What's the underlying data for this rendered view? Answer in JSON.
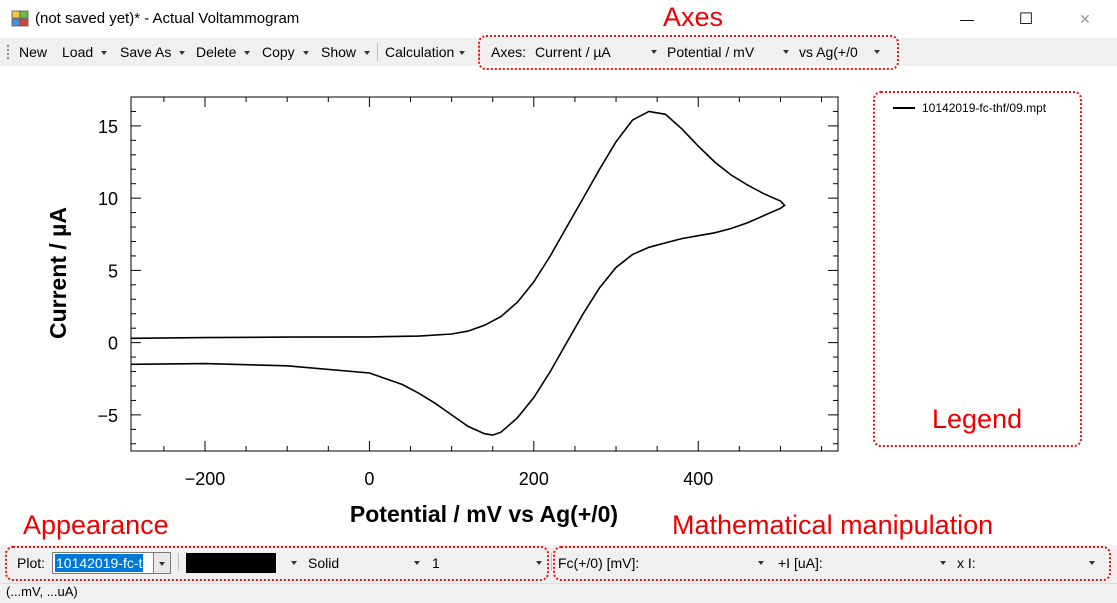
{
  "window": {
    "title": "(not saved yet)* - Actual Voltammogram",
    "icon": "app-icon",
    "controls": {
      "minimize": "—",
      "maximize": "☐",
      "close": "✕"
    }
  },
  "toolbar": {
    "items": [
      {
        "label": "New",
        "dropdown": false
      },
      {
        "label": "Load",
        "dropdown": true
      },
      {
        "label": "Save As",
        "dropdown": true
      },
      {
        "label": "Delete",
        "dropdown": true
      },
      {
        "label": "Copy",
        "dropdown": true
      },
      {
        "label": "Show",
        "dropdown": true
      },
      {
        "label": "Calculation",
        "dropdown": true
      }
    ],
    "axes_label": "Axes:",
    "y_axis_value": "Current / µA",
    "x_axis_value": "Potential / mV",
    "reference_value": "vs Ag(+/0"
  },
  "annotations": {
    "axes": "Axes",
    "legend": "Legend",
    "appearance": "Appearance",
    "math": "Mathematical manipulation"
  },
  "chart_data": {
    "type": "line",
    "xlabel": "Potential / mV vs Ag(+/0)",
    "ylabel": "Current / µA",
    "xlim": [
      -290,
      570
    ],
    "ylim": [
      -7.5,
      17
    ],
    "xticks": [
      -200,
      0,
      200,
      400
    ],
    "yticks": [
      -5,
      0,
      5,
      10,
      15
    ],
    "grid": false,
    "legend_placement": "right",
    "series": [
      {
        "name": "10142019-fc-thf/09.mpt",
        "color": "#000000",
        "x": [
          -290,
          -200,
          -100,
          0,
          60,
          100,
          120,
          140,
          160,
          180,
          200,
          220,
          240,
          260,
          280,
          300,
          320,
          340,
          360,
          380,
          400,
          420,
          440,
          460,
          480,
          500,
          505,
          500,
          480,
          460,
          440,
          420,
          400,
          380,
          360,
          340,
          320,
          300,
          280,
          260,
          240,
          220,
          200,
          180,
          160,
          150,
          140,
          120,
          100,
          80,
          60,
          40,
          0,
          -100,
          -200,
          -290
        ],
        "y": [
          0.3,
          0.35,
          0.38,
          0.4,
          0.45,
          0.6,
          0.8,
          1.2,
          1.8,
          2.8,
          4.2,
          6.0,
          8.0,
          10.0,
          12.0,
          13.9,
          15.4,
          16.0,
          15.8,
          14.8,
          13.6,
          12.5,
          11.6,
          10.9,
          10.3,
          9.8,
          9.5,
          9.3,
          8.8,
          8.3,
          7.9,
          7.6,
          7.4,
          7.2,
          6.9,
          6.6,
          6.1,
          5.2,
          3.8,
          2.0,
          0.0,
          -2.0,
          -3.8,
          -5.2,
          -6.2,
          -6.4,
          -6.3,
          -5.8,
          -5.0,
          -4.2,
          -3.5,
          -2.9,
          -2.1,
          -1.6,
          -1.45,
          -1.5
        ]
      }
    ]
  },
  "bottom": {
    "plot_label": "Plot:",
    "plot_value": "10142019-fc-t",
    "color_value": "#000000",
    "style_value": "Solid",
    "width_value": "1",
    "fc_label": "Fc(+/0) [mV]:",
    "fc_value": "",
    "plus_i_label": "+I [uA]:",
    "plus_i_value": "",
    "times_i_label": "x I:",
    "times_i_value": ""
  },
  "status": {
    "text": "(...mV, ...uA)"
  }
}
